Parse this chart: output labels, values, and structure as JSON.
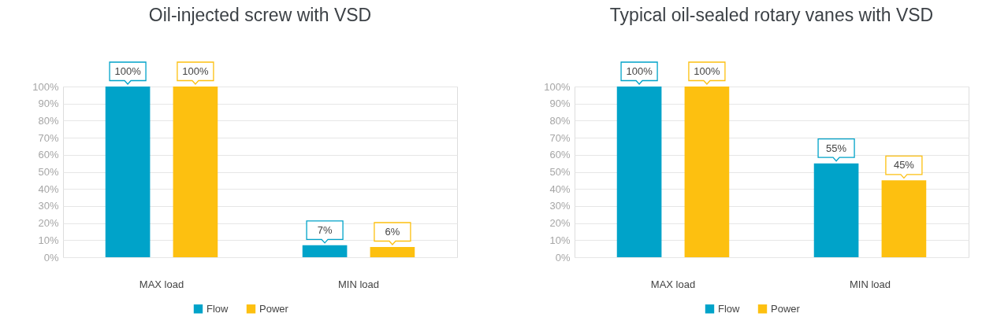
{
  "chart_data": [
    {
      "type": "bar",
      "title": "Oil-injected screw with VSD",
      "categories": [
        "MAX load",
        "MIN load"
      ],
      "series": [
        {
          "name": "Flow",
          "color": "#00a3c9",
          "values": [
            100,
            7
          ],
          "value_labels": [
            "100%",
            "7%"
          ]
        },
        {
          "name": "Power",
          "color": "#fdc010",
          "values": [
            100,
            6
          ],
          "value_labels": [
            "100%",
            "6%"
          ]
        }
      ],
      "ylim": [
        0,
        100
      ],
      "yticks": [
        {
          "value": 0,
          "label": "0%"
        },
        {
          "value": 10,
          "label": "10%"
        },
        {
          "value": 20,
          "label": "20%"
        },
        {
          "value": 30,
          "label": "30%"
        },
        {
          "value": 40,
          "label": "40%"
        },
        {
          "value": 50,
          "label": "50%"
        },
        {
          "value": 60,
          "label": "60%"
        },
        {
          "value": 70,
          "label": "70%"
        },
        {
          "value": 80,
          "label": "80%"
        },
        {
          "value": 90,
          "label": "90%"
        },
        {
          "value": 100,
          "label": "100%"
        }
      ],
      "grid": "y",
      "legend": "bottom"
    },
    {
      "type": "bar",
      "title": "Typical oil-sealed rotary vanes with VSD",
      "categories": [
        "MAX load",
        "MIN load"
      ],
      "series": [
        {
          "name": "Flow",
          "color": "#00a3c9",
          "values": [
            100,
            55
          ],
          "value_labels": [
            "100%",
            "55%"
          ]
        },
        {
          "name": "Power",
          "color": "#fdc010",
          "values": [
            100,
            45
          ],
          "value_labels": [
            "100%",
            "45%"
          ]
        }
      ],
      "ylim": [
        0,
        100
      ],
      "yticks": [
        {
          "value": 0,
          "label": "0%"
        },
        {
          "value": 10,
          "label": "10%"
        },
        {
          "value": 20,
          "label": "20%"
        },
        {
          "value": 30,
          "label": "30%"
        },
        {
          "value": 40,
          "label": "40%"
        },
        {
          "value": 50,
          "label": "50%"
        },
        {
          "value": 60,
          "label": "60%"
        },
        {
          "value": 70,
          "label": "70%"
        },
        {
          "value": 80,
          "label": "80%"
        },
        {
          "value": 90,
          "label": "90%"
        },
        {
          "value": 100,
          "label": "100%"
        }
      ],
      "grid": "y",
      "legend": "bottom"
    }
  ]
}
